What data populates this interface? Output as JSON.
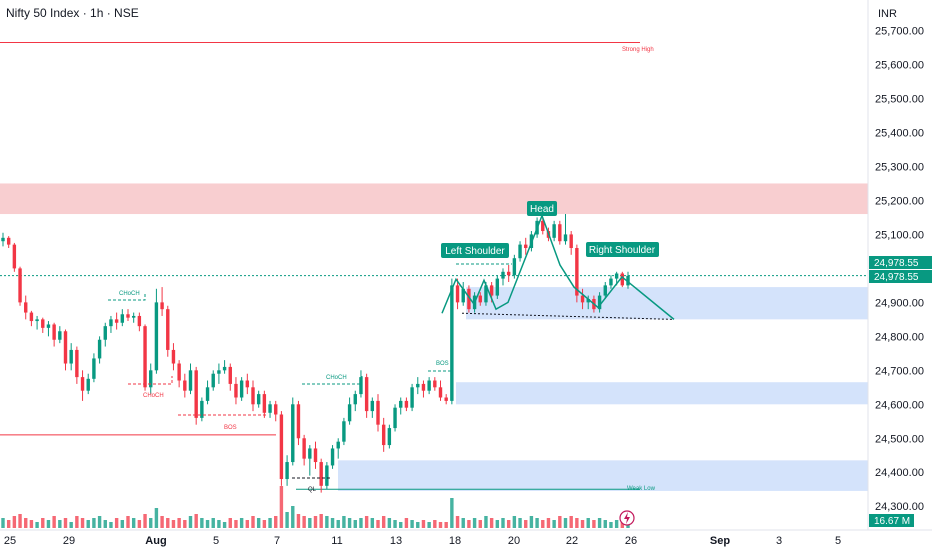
{
  "header": {
    "title": "Nifty 50 Index · 1h · NSE",
    "currency": "INR"
  },
  "colors": {
    "up": "#089981",
    "down": "#f23645",
    "zone_red": "#f7c5c8",
    "zone_blue": "#cfe0fb",
    "pattern": "#089981"
  },
  "chart_data": {
    "type": "candlestick",
    "title": "Nifty 50 Index · 1h · NSE",
    "ylim": [
      24230,
      25790
    ],
    "y_ticks": [
      "25,700.00",
      "25,600.00",
      "25,500.00",
      "25,400.00",
      "25,300.00",
      "25,200.00",
      "25,100.00",
      "24,900.00",
      "24,800.00",
      "24,700.00",
      "24,600.00",
      "24,500.00",
      "24,400.00",
      "24,300.00"
    ],
    "x_ticks": [
      "25",
      "29",
      "Aug",
      "5",
      "7",
      "11",
      "13",
      "18",
      "20",
      "22",
      "26",
      "Sep",
      "3",
      "5"
    ],
    "price_labels": [
      "24,978.55",
      "24,978.55"
    ],
    "volume_label": "16.67 M",
    "last_price": 24978.55,
    "annotations": [
      "Left Shoulder",
      "Head",
      "Right Shoulder"
    ],
    "structure_labels": [
      "Strong High",
      "Weak Low",
      "CHoCH",
      "CHoCH",
      "CHoCH",
      "BOS",
      "BOS",
      "QL"
    ],
    "zones": [
      {
        "type": "supply",
        "from": 25160,
        "to": 25250
      },
      {
        "type": "demand",
        "from": 24850,
        "to": 24945
      },
      {
        "type": "demand",
        "from": 24600,
        "to": 24665
      },
      {
        "type": "demand",
        "from": 24345,
        "to": 24435
      }
    ],
    "levels": [
      {
        "name": "strong_high",
        "price": 25665
      },
      {
        "name": "bos_low",
        "price": 24510
      },
      {
        "name": "weak_low",
        "price": 24350
      }
    ],
    "pattern_pivots": [
      {
        "date": "Aug 17",
        "price": 24870
      },
      {
        "date": "Aug 18",
        "price": 24968
      },
      {
        "date": "Aug 19",
        "price": 24895
      },
      {
        "date": "Aug 19",
        "price": 24965
      },
      {
        "date": "Aug 19",
        "price": 24900
      },
      {
        "date": "Aug 21",
        "price": 25150
      },
      {
        "date": "Aug 22",
        "price": 25010
      },
      {
        "date": "Aug 23",
        "price": 24885
      },
      {
        "date": "Aug 25",
        "price": 24975
      },
      {
        "date": "Aug 28",
        "price": 24860
      }
    ],
    "candles": [
      {
        "o": 25080,
        "h": 25105,
        "l": 25065,
        "c": 25090
      },
      {
        "o": 25090,
        "h": 25095,
        "l": 25060,
        "c": 25070
      },
      {
        "o": 25070,
        "h": 25075,
        "l": 24990,
        "c": 25000
      },
      {
        "o": 25000,
        "h": 25005,
        "l": 24890,
        "c": 24900
      },
      {
        "o": 24900,
        "h": 24920,
        "l": 24850,
        "c": 24870
      },
      {
        "o": 24870,
        "h": 24875,
        "l": 24830,
        "c": 24845
      },
      {
        "o": 24845,
        "h": 24860,
        "l": 24820,
        "c": 24850
      },
      {
        "o": 24850,
        "h": 24855,
        "l": 24810,
        "c": 24825
      },
      {
        "o": 24825,
        "h": 24845,
        "l": 24800,
        "c": 24835
      },
      {
        "o": 24835,
        "h": 24840,
        "l": 24770,
        "c": 24790
      },
      {
        "o": 24790,
        "h": 24830,
        "l": 24780,
        "c": 24815
      },
      {
        "o": 24815,
        "h": 24820,
        "l": 24700,
        "c": 24720
      },
      {
        "o": 24720,
        "h": 24780,
        "l": 24700,
        "c": 24760
      },
      {
        "o": 24760,
        "h": 24770,
        "l": 24660,
        "c": 24680
      },
      {
        "o": 24680,
        "h": 24700,
        "l": 24610,
        "c": 24640
      },
      {
        "o": 24640,
        "h": 24690,
        "l": 24630,
        "c": 24675
      },
      {
        "o": 24675,
        "h": 24750,
        "l": 24665,
        "c": 24735
      },
      {
        "o": 24735,
        "h": 24800,
        "l": 24720,
        "c": 24790
      },
      {
        "o": 24790,
        "h": 24840,
        "l": 24770,
        "c": 24830
      },
      {
        "o": 24830,
        "h": 24860,
        "l": 24810,
        "c": 24850
      },
      {
        "o": 24850,
        "h": 24870,
        "l": 24820,
        "c": 24840
      },
      {
        "o": 24840,
        "h": 24880,
        "l": 24830,
        "c": 24865
      },
      {
        "o": 24865,
        "h": 24880,
        "l": 24845,
        "c": 24855
      },
      {
        "o": 24855,
        "h": 24870,
        "l": 24840,
        "c": 24860
      },
      {
        "o": 24860,
        "h": 24870,
        "l": 24815,
        "c": 24830
      },
      {
        "o": 24830,
        "h": 24835,
        "l": 24640,
        "c": 24650
      },
      {
        "o": 24650,
        "h": 24720,
        "l": 24630,
        "c": 24700
      },
      {
        "o": 24700,
        "h": 24940,
        "l": 24690,
        "c": 24900
      },
      {
        "o": 24900,
        "h": 24945,
        "l": 24860,
        "c": 24880
      },
      {
        "o": 24880,
        "h": 24890,
        "l": 24740,
        "c": 24760
      },
      {
        "o": 24760,
        "h": 24780,
        "l": 24700,
        "c": 24720
      },
      {
        "o": 24720,
        "h": 24730,
        "l": 24650,
        "c": 24670
      },
      {
        "o": 24670,
        "h": 24690,
        "l": 24620,
        "c": 24640
      },
      {
        "o": 24640,
        "h": 24720,
        "l": 24630,
        "c": 24700
      },
      {
        "o": 24700,
        "h": 24710,
        "l": 24540,
        "c": 24560
      },
      {
        "o": 24560,
        "h": 24620,
        "l": 24550,
        "c": 24610
      },
      {
        "o": 24610,
        "h": 24670,
        "l": 24600,
        "c": 24650
      },
      {
        "o": 24650,
        "h": 24700,
        "l": 24640,
        "c": 24690
      },
      {
        "o": 24690,
        "h": 24720,
        "l": 24660,
        "c": 24700
      },
      {
        "o": 24700,
        "h": 24730,
        "l": 24690,
        "c": 24710
      },
      {
        "o": 24710,
        "h": 24720,
        "l": 24640,
        "c": 24660
      },
      {
        "o": 24660,
        "h": 24680,
        "l": 24600,
        "c": 24620
      },
      {
        "o": 24620,
        "h": 24680,
        "l": 24610,
        "c": 24670
      },
      {
        "o": 24670,
        "h": 24690,
        "l": 24630,
        "c": 24650
      },
      {
        "o": 24650,
        "h": 24670,
        "l": 24580,
        "c": 24600
      },
      {
        "o": 24600,
        "h": 24640,
        "l": 24590,
        "c": 24630
      },
      {
        "o": 24630,
        "h": 24640,
        "l": 24560,
        "c": 24575
      },
      {
        "o": 24575,
        "h": 24610,
        "l": 24560,
        "c": 24600
      },
      {
        "o": 24600,
        "h": 24610,
        "l": 24550,
        "c": 24570
      },
      {
        "o": 24570,
        "h": 24580,
        "l": 24360,
        "c": 24380
      },
      {
        "o": 24380,
        "h": 24450,
        "l": 24360,
        "c": 24430
      },
      {
        "o": 24430,
        "h": 24620,
        "l": 24420,
        "c": 24600
      },
      {
        "o": 24600,
        "h": 24610,
        "l": 24480,
        "c": 24500
      },
      {
        "o": 24500,
        "h": 24510,
        "l": 24420,
        "c": 24440
      },
      {
        "o": 24440,
        "h": 24480,
        "l": 24390,
        "c": 24470
      },
      {
        "o": 24470,
        "h": 24490,
        "l": 24410,
        "c": 24430
      },
      {
        "o": 24430,
        "h": 24440,
        "l": 24340,
        "c": 24360
      },
      {
        "o": 24360,
        "h": 24430,
        "l": 24350,
        "c": 24420
      },
      {
        "o": 24420,
        "h": 24480,
        "l": 24410,
        "c": 24470
      },
      {
        "o": 24470,
        "h": 24500,
        "l": 24440,
        "c": 24490
      },
      {
        "o": 24490,
        "h": 24560,
        "l": 24480,
        "c": 24550
      },
      {
        "o": 24550,
        "h": 24620,
        "l": 24540,
        "c": 24600
      },
      {
        "o": 24600,
        "h": 24640,
        "l": 24580,
        "c": 24630
      },
      {
        "o": 24630,
        "h": 24700,
        "l": 24620,
        "c": 24680
      },
      {
        "o": 24680,
        "h": 24690,
        "l": 24560,
        "c": 24580
      },
      {
        "o": 24580,
        "h": 24620,
        "l": 24560,
        "c": 24610
      },
      {
        "o": 24610,
        "h": 24630,
        "l": 24520,
        "c": 24540
      },
      {
        "o": 24540,
        "h": 24560,
        "l": 24460,
        "c": 24480
      },
      {
        "o": 24480,
        "h": 24540,
        "l": 24470,
        "c": 24530
      },
      {
        "o": 24530,
        "h": 24600,
        "l": 24520,
        "c": 24590
      },
      {
        "o": 24590,
        "h": 24620,
        "l": 24570,
        "c": 24610
      },
      {
        "o": 24610,
        "h": 24620,
        "l": 24580,
        "c": 24590
      },
      {
        "o": 24590,
        "h": 24660,
        "l": 24580,
        "c": 24650
      },
      {
        "o": 24650,
        "h": 24680,
        "l": 24630,
        "c": 24660
      },
      {
        "o": 24660,
        "h": 24670,
        "l": 24620,
        "c": 24640
      },
      {
        "o": 24640,
        "h": 24680,
        "l": 24630,
        "c": 24670
      },
      {
        "o": 24670,
        "h": 24680,
        "l": 24640,
        "c": 24650
      },
      {
        "o": 24650,
        "h": 24670,
        "l": 24610,
        "c": 24620
      },
      {
        "o": 24620,
        "h": 24630,
        "l": 24600,
        "c": 24610
      },
      {
        "o": 24610,
        "h": 24970,
        "l": 24600,
        "c": 24950
      },
      {
        "o": 24950,
        "h": 24970,
        "l": 24880,
        "c": 24900
      },
      {
        "o": 24900,
        "h": 24960,
        "l": 24890,
        "c": 24940
      },
      {
        "o": 24940,
        "h": 24950,
        "l": 24870,
        "c": 24880
      },
      {
        "o": 24880,
        "h": 24930,
        "l": 24870,
        "c": 24920
      },
      {
        "o": 24920,
        "h": 24930,
        "l": 24890,
        "c": 24900
      },
      {
        "o": 24900,
        "h": 24960,
        "l": 24890,
        "c": 24950
      },
      {
        "o": 24950,
        "h": 24960,
        "l": 24900,
        "c": 24920
      },
      {
        "o": 24920,
        "h": 24980,
        "l": 24910,
        "c": 24970
      },
      {
        "o": 24970,
        "h": 25000,
        "l": 24950,
        "c": 24990
      },
      {
        "o": 24990,
        "h": 25010,
        "l": 24960,
        "c": 24980
      },
      {
        "o": 24980,
        "h": 25040,
        "l": 24970,
        "c": 25030
      },
      {
        "o": 25030,
        "h": 25080,
        "l": 25020,
        "c": 25070
      },
      {
        "o": 25070,
        "h": 25090,
        "l": 25040,
        "c": 25060
      },
      {
        "o": 25060,
        "h": 25110,
        "l": 25050,
        "c": 25100
      },
      {
        "o": 25100,
        "h": 25150,
        "l": 25090,
        "c": 25140
      },
      {
        "o": 25140,
        "h": 25150,
        "l": 25100,
        "c": 25110
      },
      {
        "o": 25110,
        "h": 25120,
        "l": 25080,
        "c": 25090
      },
      {
        "o": 25090,
        "h": 25140,
        "l": 25080,
        "c": 25130
      },
      {
        "o": 25130,
        "h": 25140,
        "l": 25070,
        "c": 25080
      },
      {
        "o": 25080,
        "h": 25160,
        "l": 25070,
        "c": 25100
      },
      {
        "o": 25100,
        "h": 25110,
        "l": 25040,
        "c": 25060
      },
      {
        "o": 25060,
        "h": 25070,
        "l": 24900,
        "c": 24920
      },
      {
        "o": 24920,
        "h": 24940,
        "l": 24880,
        "c": 24900
      },
      {
        "o": 24900,
        "h": 24920,
        "l": 24880,
        "c": 24910
      },
      {
        "o": 24910,
        "h": 24920,
        "l": 24870,
        "c": 24880
      },
      {
        "o": 24880,
        "h": 24930,
        "l": 24870,
        "c": 24920
      },
      {
        "o": 24920,
        "h": 24960,
        "l": 24910,
        "c": 24950
      },
      {
        "o": 24950,
        "h": 24980,
        "l": 24940,
        "c": 24970
      },
      {
        "o": 24970,
        "h": 24990,
        "l": 24950,
        "c": 24985
      },
      {
        "o": 24985,
        "h": 24990,
        "l": 24945,
        "c": 24950
      },
      {
        "o": 24950,
        "h": 24990,
        "l": 24940,
        "c": 24978
      }
    ],
    "volume": [
      0.5,
      0.4,
      0.6,
      0.7,
      0.5,
      0.4,
      0.3,
      0.5,
      0.4,
      0.6,
      0.4,
      0.5,
      0.3,
      0.6,
      0.5,
      0.4,
      0.5,
      0.6,
      0.4,
      0.3,
      0.5,
      0.4,
      0.6,
      0.5,
      0.4,
      0.7,
      0.5,
      1.0,
      0.6,
      0.5,
      0.4,
      0.5,
      0.4,
      0.6,
      0.7,
      0.5,
      0.4,
      0.5,
      0.4,
      0.3,
      0.5,
      0.4,
      0.5,
      0.4,
      0.6,
      0.5,
      0.4,
      0.5,
      0.6,
      2.1,
      0.8,
      1.1,
      0.7,
      0.6,
      0.5,
      0.6,
      0.7,
      0.6,
      0.5,
      0.4,
      0.6,
      0.5,
      0.4,
      0.5,
      0.6,
      0.5,
      0.4,
      0.6,
      0.5,
      0.4,
      0.3,
      0.5,
      0.4,
      0.3,
      0.4,
      0.3,
      0.4,
      0.3,
      0.3,
      1.5,
      0.6,
      0.5,
      0.4,
      0.5,
      0.4,
      0.6,
      0.5,
      0.4,
      0.5,
      0.4,
      0.6,
      0.5,
      0.4,
      0.6,
      0.5,
      0.4,
      0.5,
      0.4,
      0.6,
      0.5,
      0.6,
      0.5,
      0.4,
      0.5,
      0.4,
      0.5,
      0.4,
      0.3,
      0.4,
      0.3,
      0.2
    ]
  }
}
